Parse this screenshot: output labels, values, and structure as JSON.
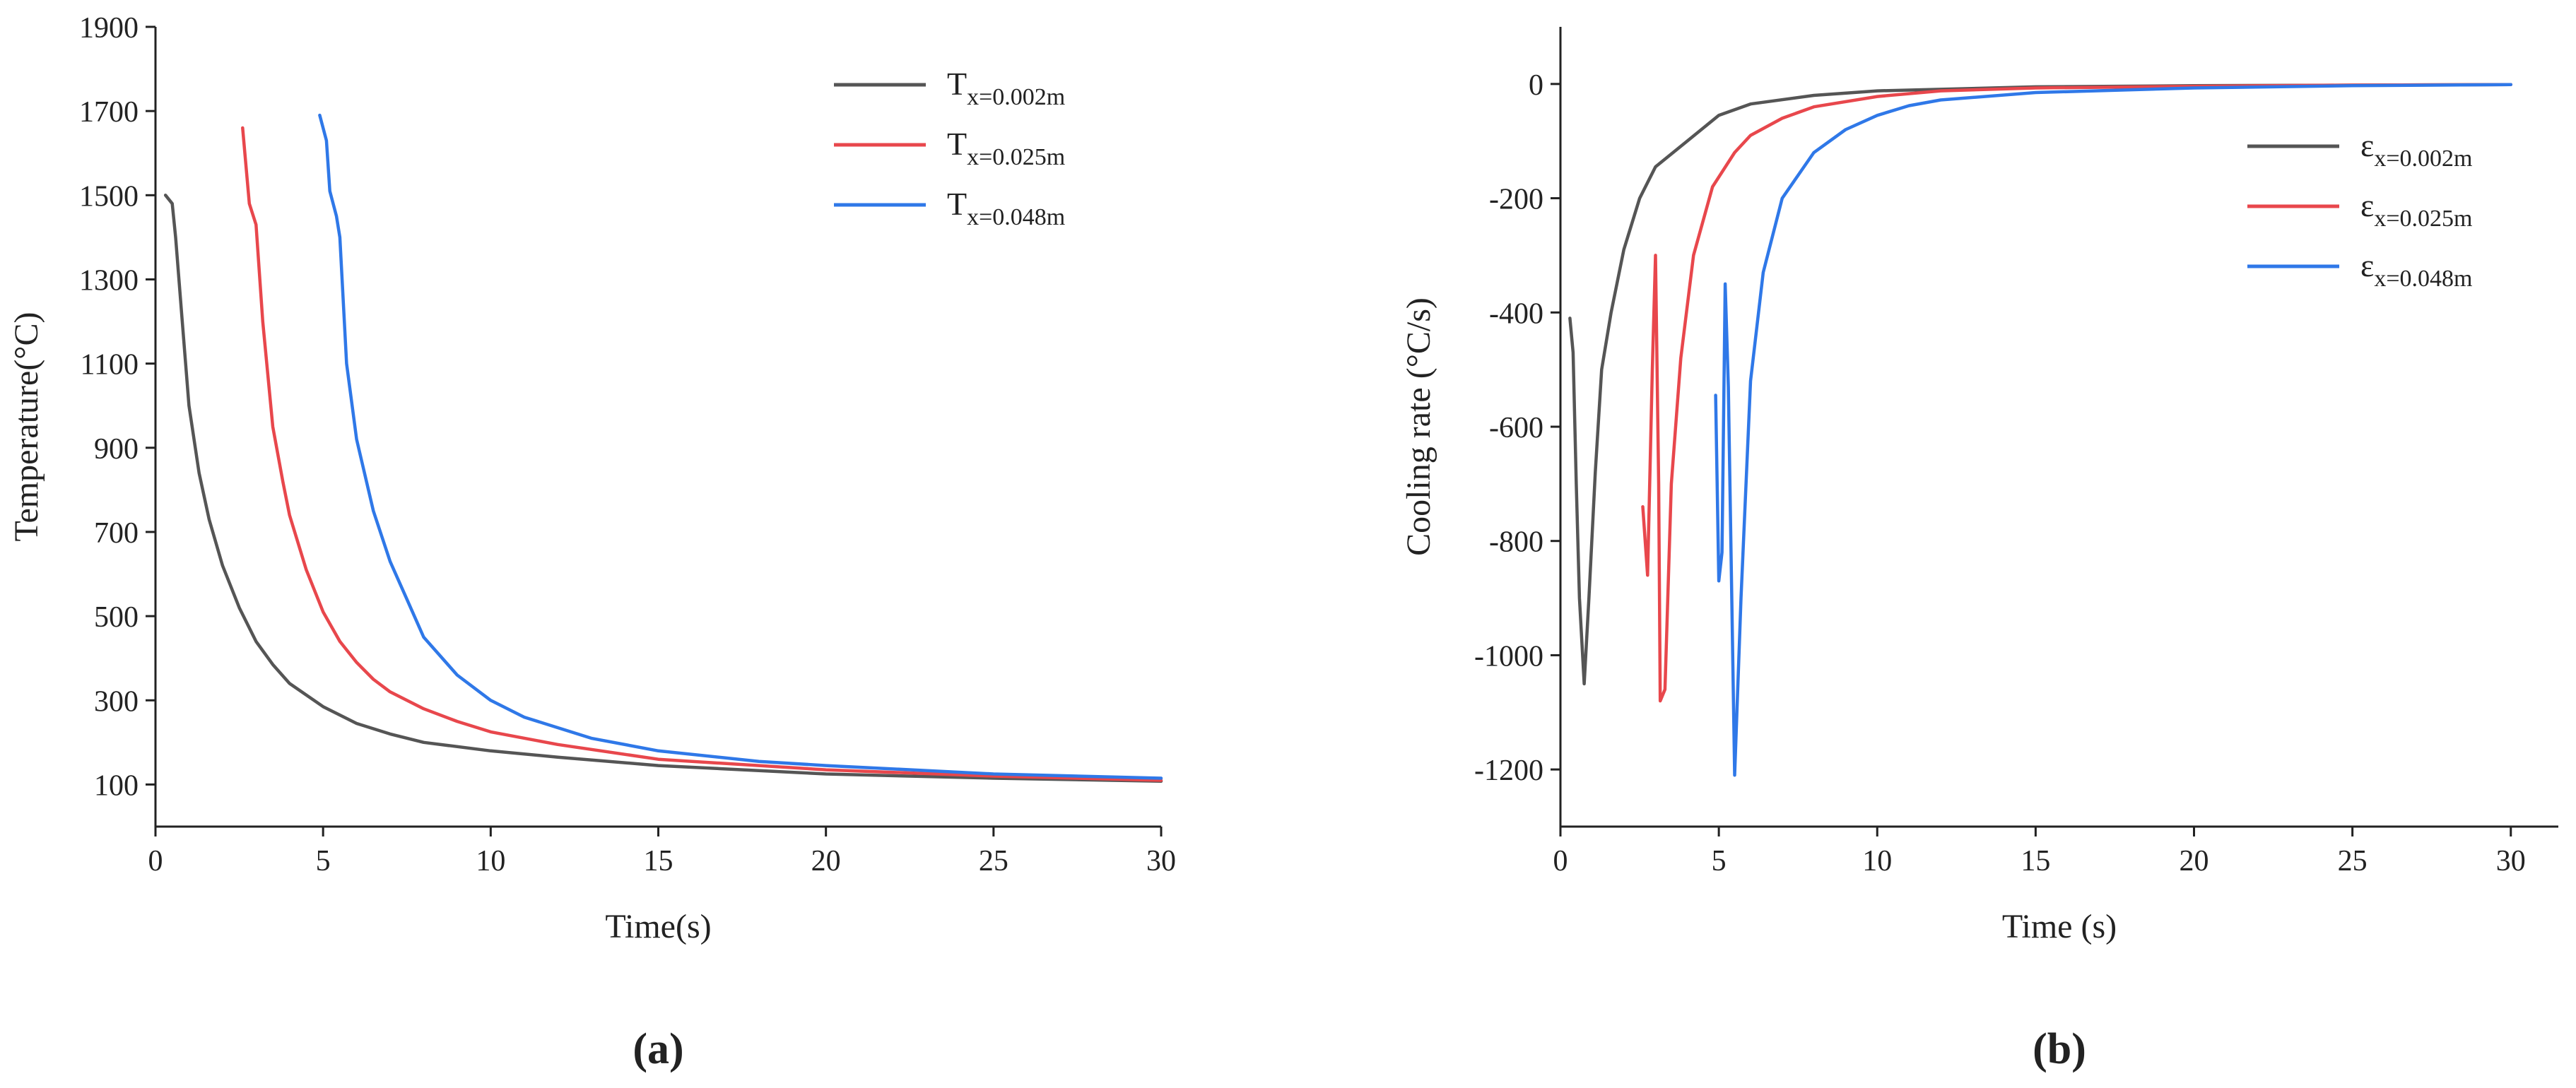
{
  "chart_data": [
    {
      "id": "a",
      "type": "line",
      "panel_label": "(a)",
      "title": "",
      "xlabel": "Time(s)",
      "ylabel": "Temperature(°C)",
      "xlim": [
        0,
        30
      ],
      "ylim": [
        0,
        1900
      ],
      "xticks": [
        0,
        5,
        10,
        15,
        20,
        25,
        30
      ],
      "yticks": [
        100,
        300,
        500,
        700,
        900,
        1100,
        1300,
        1500,
        1700,
        1900
      ],
      "grid": false,
      "legend": "top-right",
      "series": [
        {
          "name": "Tx=0.002m",
          "label_main": "T",
          "label_sub": "x=0.002m",
          "color": "#555555",
          "points": [
            [
              0.3,
              1500
            ],
            [
              0.5,
              1480
            ],
            [
              0.6,
              1400
            ],
            [
              0.8,
              1200
            ],
            [
              1.0,
              1000
            ],
            [
              1.3,
              840
            ],
            [
              1.6,
              730
            ],
            [
              2.0,
              620
            ],
            [
              2.5,
              520
            ],
            [
              3.0,
              440
            ],
            [
              3.5,
              385
            ],
            [
              4.0,
              340
            ],
            [
              5.0,
              285
            ],
            [
              6.0,
              245
            ],
            [
              7.0,
              220
            ],
            [
              8.0,
              200
            ],
            [
              10.0,
              180
            ],
            [
              12.0,
              165
            ],
            [
              15.0,
              145
            ],
            [
              20.0,
              125
            ],
            [
              25.0,
              115
            ],
            [
              30.0,
              108
            ]
          ]
        },
        {
          "name": "Tx=0.025m",
          "label_main": "T",
          "label_sub": "x=0.025m",
          "color": "#e8474c",
          "points": [
            [
              2.6,
              1660
            ],
            [
              2.8,
              1480
            ],
            [
              3.0,
              1430
            ],
            [
              3.2,
              1200
            ],
            [
              3.5,
              950
            ],
            [
              3.8,
              820
            ],
            [
              4.0,
              740
            ],
            [
              4.5,
              610
            ],
            [
              5.0,
              510
            ],
            [
              5.5,
              440
            ],
            [
              6.0,
              390
            ],
            [
              6.5,
              350
            ],
            [
              7.0,
              320
            ],
            [
              8.0,
              280
            ],
            [
              9.0,
              250
            ],
            [
              10.0,
              225
            ],
            [
              12.0,
              195
            ],
            [
              15.0,
              160
            ],
            [
              20.0,
              135
            ],
            [
              25.0,
              120
            ],
            [
              30.0,
              110
            ]
          ]
        },
        {
          "name": "Tx=0.048m",
          "label_main": "T",
          "label_sub": "x=0.048m",
          "color": "#2f78e8",
          "points": [
            [
              4.9,
              1690
            ],
            [
              5.1,
              1630
            ],
            [
              5.2,
              1510
            ],
            [
              5.4,
              1450
            ],
            [
              5.5,
              1400
            ],
            [
              5.7,
              1100
            ],
            [
              6.0,
              920
            ],
            [
              6.5,
              750
            ],
            [
              7.0,
              630
            ],
            [
              7.5,
              540
            ],
            [
              8.0,
              450
            ],
            [
              9.0,
              360
            ],
            [
              10.0,
              300
            ],
            [
              11.0,
              260
            ],
            [
              12.0,
              235
            ],
            [
              13.0,
              210
            ],
            [
              15.0,
              180
            ],
            [
              18.0,
              155
            ],
            [
              20.0,
              145
            ],
            [
              25.0,
              125
            ],
            [
              30.0,
              115
            ]
          ]
        }
      ]
    },
    {
      "id": "b",
      "type": "line",
      "panel_label": "(b)",
      "title": "",
      "xlabel": "Time (s)",
      "ylabel": "Cooling rate (°C/s)",
      "xlim": [
        0,
        31.5
      ],
      "ylim": [
        -1300,
        100
      ],
      "xticks": [
        0,
        5,
        10,
        15,
        20,
        25,
        30
      ],
      "yticks": [
        0,
        -200,
        -400,
        -600,
        -800,
        -1000,
        -1200
      ],
      "grid": false,
      "legend": "top-right",
      "series": [
        {
          "name": "εx=0.002m",
          "label_main": "ε",
          "label_sub": "x=0.002m",
          "color": "#555555",
          "points": [
            [
              0.3,
              -410
            ],
            [
              0.4,
              -470
            ],
            [
              0.5,
              -700
            ],
            [
              0.6,
              -900
            ],
            [
              0.75,
              -1050
            ],
            [
              0.9,
              -900
            ],
            [
              1.1,
              -680
            ],
            [
              1.3,
              -500
            ],
            [
              1.6,
              -400
            ],
            [
              2.0,
              -290
            ],
            [
              2.5,
              -200
            ],
            [
              3.0,
              -145
            ],
            [
              4.0,
              -100
            ],
            [
              5.0,
              -55
            ],
            [
              6.0,
              -35
            ],
            [
              8.0,
              -20
            ],
            [
              10.0,
              -12
            ],
            [
              15.0,
              -5
            ],
            [
              20.0,
              -3
            ],
            [
              25.0,
              -2
            ],
            [
              30.0,
              -1
            ]
          ]
        },
        {
          "name": "εx=0.025m",
          "label_main": "ε",
          "label_sub": "x=0.025m",
          "color": "#e8474c",
          "points": [
            [
              2.6,
              -740
            ],
            [
              2.75,
              -860
            ],
            [
              2.9,
              -500
            ],
            [
              3.0,
              -300
            ],
            [
              3.1,
              -700
            ],
            [
              3.15,
              -1080
            ],
            [
              3.3,
              -1060
            ],
            [
              3.5,
              -700
            ],
            [
              3.8,
              -480
            ],
            [
              4.2,
              -300
            ],
            [
              4.8,
              -180
            ],
            [
              5.5,
              -120
            ],
            [
              6.0,
              -90
            ],
            [
              7.0,
              -60
            ],
            [
              8.0,
              -40
            ],
            [
              10.0,
              -22
            ],
            [
              12.0,
              -12
            ],
            [
              15.0,
              -7
            ],
            [
              20.0,
              -4
            ],
            [
              25.0,
              -2
            ],
            [
              30.0,
              -1
            ]
          ]
        },
        {
          "name": "εx=0.048m",
          "label_main": "ε",
          "label_sub": "x=0.048m",
          "color": "#2f78e8",
          "points": [
            [
              4.9,
              -545
            ],
            [
              5.0,
              -870
            ],
            [
              5.1,
              -820
            ],
            [
              5.2,
              -350
            ],
            [
              5.3,
              -530
            ],
            [
              5.5,
              -1210
            ],
            [
              5.7,
              -900
            ],
            [
              6.0,
              -520
            ],
            [
              6.4,
              -330
            ],
            [
              7.0,
              -200
            ],
            [
              8.0,
              -120
            ],
            [
              9.0,
              -80
            ],
            [
              10.0,
              -55
            ],
            [
              11.0,
              -38
            ],
            [
              12.0,
              -28
            ],
            [
              15.0,
              -15
            ],
            [
              20.0,
              -7
            ],
            [
              25.0,
              -3
            ],
            [
              30.0,
              -1
            ]
          ]
        }
      ]
    }
  ]
}
